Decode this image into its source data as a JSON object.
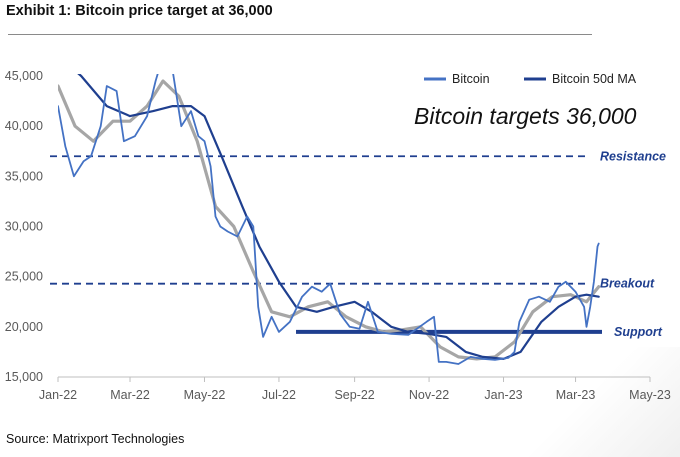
{
  "header": {
    "title": "Exhibit 1: Bitcoin price target at 36,000"
  },
  "footer": {
    "source": "Source: Matrixport Technologies"
  },
  "colors": {
    "bitcoin": "#4472c4",
    "ma50": "#1f3f8f",
    "gray_series": "#a6a6a6",
    "levels": "#1f3f8f",
    "label_text": "#1f3f8f",
    "tick_text": "#595959"
  },
  "chart_data": {
    "type": "line",
    "title": "",
    "xlabel": "",
    "ylabel": "",
    "x_ticks": [
      "Jan-22",
      "Mar-22",
      "May-22",
      "Jul-22",
      "Sep-22",
      "Nov-22",
      "Jan-23",
      "Mar-23",
      "May-23"
    ],
    "y_ticks": [
      "15,000",
      "20,000",
      "25,000",
      "30,000",
      "35,000",
      "40,000",
      "45,000"
    ],
    "xlim": [
      "2022-01-01",
      "2023-05-01"
    ],
    "ylim": [
      15000,
      45000
    ],
    "grid": false,
    "legend": {
      "placement": "top-right",
      "entries": [
        "Bitcoin",
        "Bitcoin 50d MA"
      ]
    },
    "annotation": "Bitcoin targets 36,000",
    "levels": [
      {
        "label": "Resistance",
        "value": 37000,
        "style": "dashed"
      },
      {
        "label": "Breakout",
        "value": 24300,
        "style": "dashed"
      },
      {
        "label": "Support",
        "value": 19500,
        "style": "solid",
        "x_start": "2022-07-15"
      }
    ],
    "series": [
      {
        "name": "Bitcoin",
        "x": [
          "2022-01-01",
          "2022-01-07",
          "2022-01-14",
          "2022-01-22",
          "2022-01-28",
          "2022-02-05",
          "2022-02-10",
          "2022-02-18",
          "2022-02-24",
          "2022-03-05",
          "2022-03-15",
          "2022-03-22",
          "2022-03-28",
          "2022-04-05",
          "2022-04-12",
          "2022-04-20",
          "2022-04-26",
          "2022-05-01",
          "2022-05-06",
          "2022-05-10",
          "2022-05-14",
          "2022-05-20",
          "2022-05-28",
          "2022-06-05",
          "2022-06-10",
          "2022-06-14",
          "2022-06-18",
          "2022-06-25",
          "2022-07-01",
          "2022-07-10",
          "2022-07-20",
          "2022-07-28",
          "2022-08-05",
          "2022-08-12",
          "2022-08-20",
          "2022-08-28",
          "2022-09-05",
          "2022-09-12",
          "2022-09-20",
          "2022-10-01",
          "2022-10-15",
          "2022-10-30",
          "2022-11-05",
          "2022-11-09",
          "2022-11-15",
          "2022-11-25",
          "2022-12-05",
          "2022-12-15",
          "2022-12-25",
          "2023-01-05",
          "2023-01-10",
          "2023-01-14",
          "2023-01-22",
          "2023-01-30",
          "2023-02-08",
          "2023-02-15",
          "2023-02-21",
          "2023-03-01",
          "2023-03-08",
          "2023-03-10",
          "2023-03-13",
          "2023-03-16",
          "2023-03-19",
          "2023-03-20"
        ],
        "values": [
          42000,
          38000,
          35000,
          36500,
          37000,
          40000,
          44000,
          43500,
          38500,
          39000,
          41000,
          44500,
          47000,
          45500,
          40000,
          41500,
          39000,
          38500,
          36000,
          31000,
          30000,
          29500,
          29000,
          31000,
          30000,
          22000,
          19000,
          21000,
          19500,
          20500,
          23000,
          24000,
          23500,
          24300,
          21300,
          20000,
          19800,
          22500,
          19500,
          19300,
          19200,
          20500,
          21000,
          16500,
          16500,
          16300,
          17000,
          16800,
          16700,
          16900,
          17500,
          20500,
          22700,
          23000,
          22500,
          24000,
          24500,
          23500,
          22000,
          20000,
          22000,
          24500,
          28000,
          28300
        ]
      },
      {
        "name": "Bitcoin 50d MA",
        "x": [
          "2022-01-01",
          "2022-01-20",
          "2022-02-10",
          "2022-03-01",
          "2022-03-20",
          "2022-04-05",
          "2022-04-20",
          "2022-05-01",
          "2022-05-15",
          "2022-06-01",
          "2022-06-15",
          "2022-07-01",
          "2022-07-15",
          "2022-08-01",
          "2022-08-15",
          "2022-09-01",
          "2022-09-15",
          "2022-10-01",
          "2022-10-15",
          "2022-11-01",
          "2022-11-15",
          "2022-12-01",
          "2022-12-15",
          "2023-01-01",
          "2023-01-15",
          "2023-02-01",
          "2023-02-15",
          "2023-03-01",
          "2023-03-10",
          "2023-03-20"
        ],
        "values": [
          47000,
          45000,
          42000,
          41000,
          41500,
          42000,
          42000,
          41000,
          37000,
          32000,
          28000,
          24500,
          22000,
          21500,
          22000,
          22500,
          21500,
          20000,
          19500,
          19300,
          19000,
          17500,
          17000,
          16800,
          17500,
          20500,
          22000,
          23000,
          23200,
          23000
        ]
      },
      {
        "name": "",
        "x": [
          "2022-01-01",
          "2022-01-15",
          "2022-01-30",
          "2022-02-15",
          "2022-03-01",
          "2022-03-15",
          "2022-03-28",
          "2022-04-10",
          "2022-04-25",
          "2022-05-10",
          "2022-05-25",
          "2022-06-10",
          "2022-06-25",
          "2022-07-10",
          "2022-07-25",
          "2022-08-10",
          "2022-08-25",
          "2022-09-10",
          "2022-09-25",
          "2022-10-10",
          "2022-10-25",
          "2022-11-10",
          "2022-11-25",
          "2022-12-10",
          "2022-12-25",
          "2023-01-10",
          "2023-01-25",
          "2023-02-10",
          "2023-02-25",
          "2023-03-10",
          "2023-03-20"
        ],
        "values": [
          44000,
          40000,
          38500,
          40500,
          40500,
          42000,
          44500,
          43000,
          38500,
          32000,
          30000,
          25500,
          21500,
          21000,
          22000,
          22500,
          21000,
          20000,
          19500,
          19700,
          20000,
          18000,
          17000,
          16800,
          17000,
          18500,
          21500,
          23000,
          23200,
          22500,
          24000
        ]
      }
    ]
  }
}
